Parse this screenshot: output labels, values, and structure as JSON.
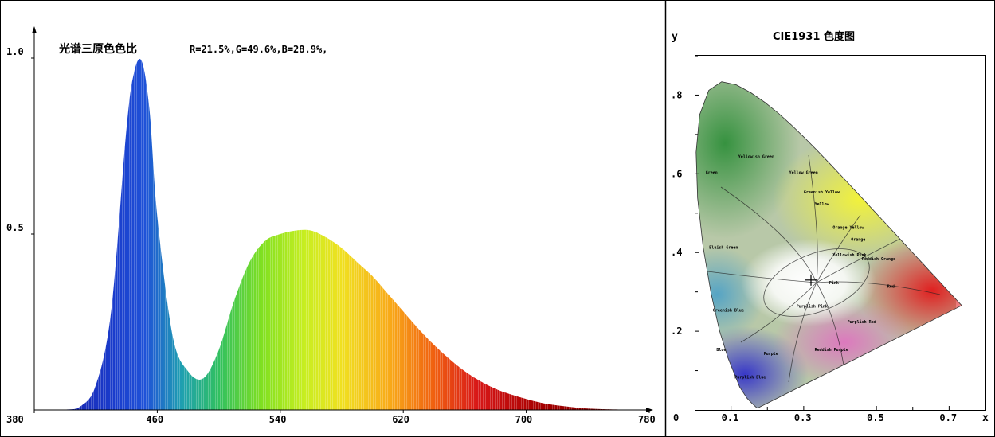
{
  "chart_data": [
    {
      "type": "area",
      "title": "光谱三原色色比",
      "subtitle": "R=21.5%,G=49.6%,B=28.9%,",
      "xlabel": "",
      "ylabel": "",
      "xlim": [
        380,
        780
      ],
      "ylim": [
        0,
        1.0
      ],
      "x_ticks": [
        "380",
        "460",
        "540",
        "620",
        "700",
        "780"
      ],
      "y_ticks": [
        "0.5",
        "1.0"
      ],
      "x": [
        380,
        400,
        410,
        420,
        430,
        440,
        445,
        450,
        455,
        460,
        470,
        480,
        490,
        500,
        510,
        520,
        530,
        540,
        550,
        560,
        570,
        580,
        590,
        600,
        610,
        620,
        630,
        640,
        650,
        660,
        670,
        680,
        690,
        700,
        710,
        720,
        730,
        740,
        760,
        780
      ],
      "values": [
        0,
        0.001,
        0.01,
        0.07,
        0.28,
        0.8,
        0.96,
        0.99,
        0.85,
        0.55,
        0.21,
        0.11,
        0.09,
        0.17,
        0.31,
        0.42,
        0.48,
        0.5,
        0.51,
        0.51,
        0.49,
        0.46,
        0.42,
        0.38,
        0.33,
        0.28,
        0.23,
        0.185,
        0.145,
        0.11,
        0.082,
        0.06,
        0.044,
        0.031,
        0.02,
        0.013,
        0.008,
        0.004,
        0.001,
        0
      ]
    },
    {
      "type": "scatter",
      "title": "CIE1931 色度图",
      "xlabel": "x",
      "ylabel": "y",
      "xlim": [
        0,
        0.8
      ],
      "ylim": [
        0,
        0.9
      ],
      "x_ticks": [
        "0",
        "0.1",
        "0.3",
        "0.5",
        "0.7"
      ],
      "y_ticks": [
        ".2",
        ".4",
        ".6",
        ".8"
      ],
      "point": {
        "x": 0.32,
        "y": 0.33
      },
      "region_labels": [
        "Yellowish Green",
        "Green",
        "Yellow Green",
        "Greenish Yellow",
        "Yellow",
        "Orange Yellow",
        "Orange",
        "Reddish Orange",
        "Yellowish Pink",
        "Pink",
        "Red",
        "Bluish Green",
        "Greenish Blue",
        "Purplish Pink",
        "Purplish Red",
        "Blue",
        "Purple",
        "Reddish Purple",
        "Purplish Blue"
      ]
    }
  ]
}
